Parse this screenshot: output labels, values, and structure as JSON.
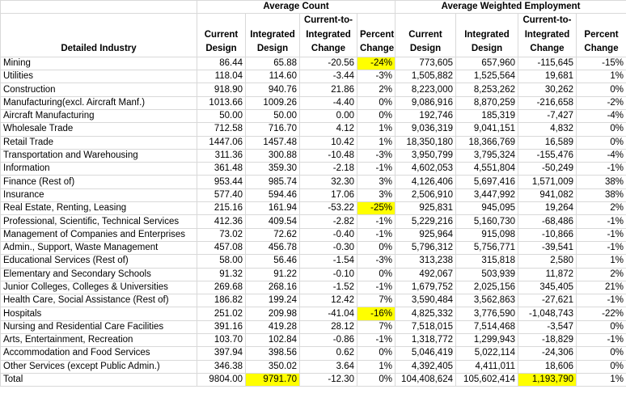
{
  "table": {
    "groups": [
      {
        "label": "Average Count",
        "span": 4
      },
      {
        "label": "Average Weighted Employment",
        "span": 4
      }
    ],
    "columns": [
      [
        "Detailed Industry"
      ],
      [
        "Current",
        "Design"
      ],
      [
        "Integrated",
        "Design"
      ],
      [
        "Current-to-",
        "Integrated",
        "Change"
      ],
      [
        "Percent",
        "Change"
      ],
      [
        "Current",
        "Design"
      ],
      [
        "Integrated",
        "Design"
      ],
      [
        "Current-to-",
        "Integrated",
        "Change"
      ],
      [
        "Percent",
        "Change"
      ]
    ],
    "rows": [
      [
        "Mining",
        "86.44",
        "65.88",
        "-20.56",
        "-24%",
        "773,605",
        "657,960",
        "-115,645",
        "-15%"
      ],
      [
        "Utilities",
        "118.04",
        "114.60",
        "-3.44",
        "-3%",
        "1,505,882",
        "1,525,564",
        "19,681",
        "1%"
      ],
      [
        "Construction",
        "918.90",
        "940.76",
        "21.86",
        "2%",
        "8,223,000",
        "8,253,262",
        "30,262",
        "0%"
      ],
      [
        "Manufacturing(excl. Aircraft Manf.)",
        "1013.66",
        "1009.26",
        "-4.40",
        "0%",
        "9,086,916",
        "8,870,259",
        "-216,658",
        "-2%"
      ],
      [
        "Aircraft Manufacturing",
        "50.00",
        "50.00",
        "0.00",
        "0%",
        "192,746",
        "185,319",
        "-7,427",
        "-4%"
      ],
      [
        "Wholesale Trade",
        "712.58",
        "716.70",
        "4.12",
        "1%",
        "9,036,319",
        "9,041,151",
        "4,832",
        "0%"
      ],
      [
        "Retail Trade",
        "1447.06",
        "1457.48",
        "10.42",
        "1%",
        "18,350,180",
        "18,366,769",
        "16,589",
        "0%"
      ],
      [
        "Transportation and Warehousing",
        "311.36",
        "300.88",
        "-10.48",
        "-3%",
        "3,950,799",
        "3,795,324",
        "-155,476",
        "-4%"
      ],
      [
        "Information",
        "361.48",
        "359.30",
        "-2.18",
        "-1%",
        "4,602,053",
        "4,551,804",
        "-50,249",
        "-1%"
      ],
      [
        "Finance (Rest of)",
        "953.44",
        "985.74",
        "32.30",
        "3%",
        "4,126,406",
        "5,697,416",
        "1,571,009",
        "38%"
      ],
      [
        "Insurance",
        "577.40",
        "594.46",
        "17.06",
        "3%",
        "2,506,910",
        "3,447,992",
        "941,082",
        "38%"
      ],
      [
        "Real Estate, Renting, Leasing",
        "215.16",
        "161.94",
        "-53.22",
        "-25%",
        "925,831",
        "945,095",
        "19,264",
        "2%"
      ],
      [
        "Professional, Scientific, Technical Services",
        "412.36",
        "409.54",
        "-2.82",
        "-1%",
        "5,229,216",
        "5,160,730",
        "-68,486",
        "-1%"
      ],
      [
        "Management of Companies and Enterprises",
        "73.02",
        "72.62",
        "-0.40",
        "-1%",
        "925,964",
        "915,098",
        "-10,866",
        "-1%"
      ],
      [
        "Admin., Support, Waste Management",
        "457.08",
        "456.78",
        "-0.30",
        "0%",
        "5,796,312",
        "5,756,771",
        "-39,541",
        "-1%"
      ],
      [
        "Educational Services (Rest of)",
        "58.00",
        "56.46",
        "-1.54",
        "-3%",
        "313,238",
        "315,818",
        "2,580",
        "1%"
      ],
      [
        "Elementary and Secondary Schools",
        "91.32",
        "91.22",
        "-0.10",
        "0%",
        "492,067",
        "503,939",
        "11,872",
        "2%"
      ],
      [
        "Junior Colleges, Colleges & Universities",
        "269.68",
        "268.16",
        "-1.52",
        "-1%",
        "1,679,752",
        "2,025,156",
        "345,405",
        "21%"
      ],
      [
        "Health Care, Social Assistance (Rest of)",
        "186.82",
        "199.24",
        "12.42",
        "7%",
        "3,590,484",
        "3,562,863",
        "-27,621",
        "-1%"
      ],
      [
        "Hospitals",
        "251.02",
        "209.98",
        "-41.04",
        "-16%",
        "4,825,332",
        "3,776,590",
        "-1,048,743",
        "-22%"
      ],
      [
        "Nursing and Residential Care Facilities",
        "391.16",
        "419.28",
        "28.12",
        "7%",
        "7,518,015",
        "7,514,468",
        "-3,547",
        "0%"
      ],
      [
        "Arts, Entertainment, Recreation",
        "103.70",
        "102.84",
        "-0.86",
        "-1%",
        "1,318,772",
        "1,299,943",
        "-18,829",
        "-1%"
      ],
      [
        "Accommodation and Food Services",
        "397.94",
        "398.56",
        "0.62",
        "0%",
        "5,046,419",
        "5,022,114",
        "-24,306",
        "0%"
      ],
      [
        "Other Services (except Public Admin.)",
        "346.38",
        "350.02",
        "3.64",
        "1%",
        "4,392,405",
        "4,411,011",
        "18,606",
        "0%"
      ]
    ],
    "total": [
      "Total",
      "9804.00",
      "9791.70",
      "-12.30",
      "0%",
      "104,408,624",
      "105,602,414",
      "1,193,790",
      "1%"
    ],
    "highlight_color": "#ffff00",
    "highlighted_cells": [
      [
        0,
        4
      ],
      [
        11,
        4
      ],
      [
        19,
        4
      ]
    ],
    "highlighted_total_cells": [
      2,
      7
    ]
  }
}
